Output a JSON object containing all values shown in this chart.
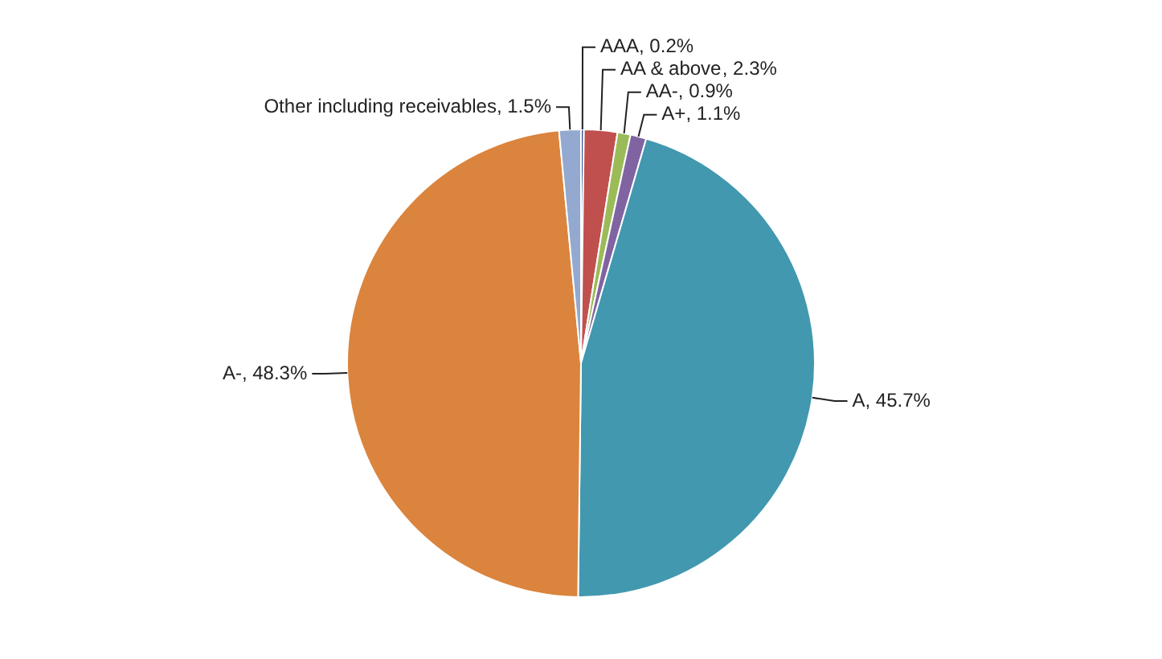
{
  "chart_data": {
    "type": "pie",
    "categories": [
      "AAA",
      "AA & above",
      "AA-",
      "A+",
      "A",
      "A-",
      "Other including receivables"
    ],
    "values": [
      0.2,
      2.3,
      0.9,
      1.1,
      45.7,
      48.3,
      1.5
    ],
    "colors": [
      "#2f4f8f",
      "#c0504d",
      "#9bbb59",
      "#8064a2",
      "#4198af",
      "#db843d",
      "#93a9cf"
    ],
    "value_labels": [
      ", 0.2%",
      ", 2.3%",
      ", 0.9%",
      ", 1.1%",
      ", 45.7%",
      ", 48.3%",
      ", 1.5%"
    ],
    "legend": false
  }
}
